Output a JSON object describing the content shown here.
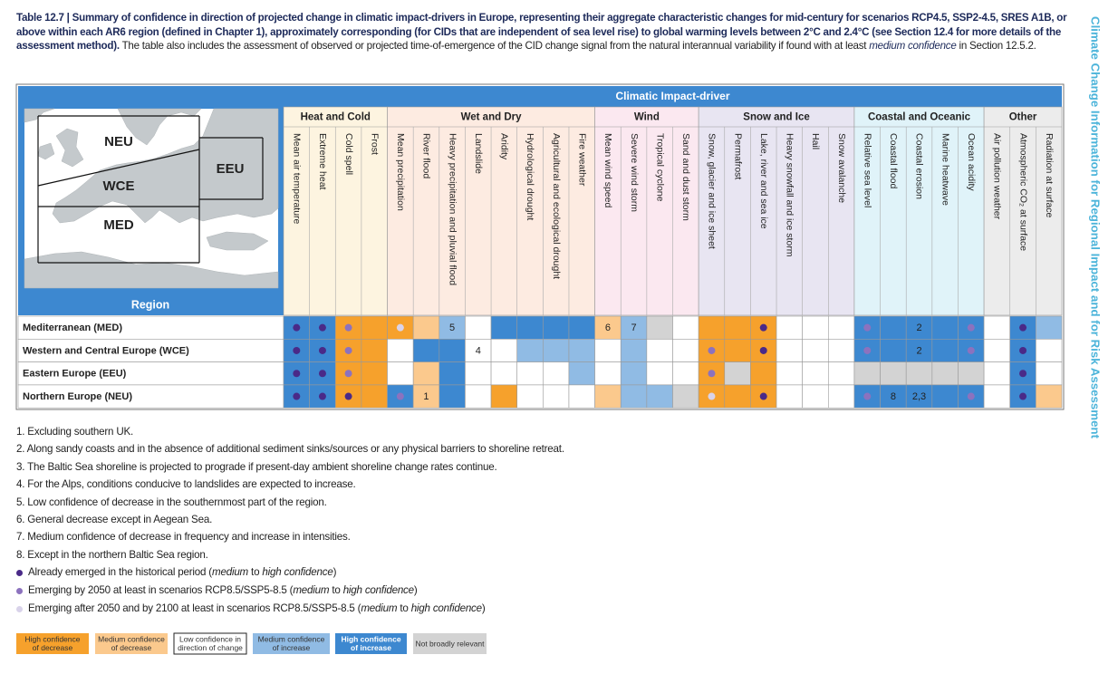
{
  "caption": [
    {
      "text": "Table 12.7 | Summary of confidence in direction of projected change in climatic impact-drivers in Europe, representing their aggregate characteristic changes for mid-century for scenarios RCP4.5, SSP2-4.5, SRES A1B, or above within each AR6 region (defined in Chapter 1), approximately corresponding (for CIDs that are independent of sea level rise) to global warming levels between 2°C and 2.4°C (see Section 12.4 for more details of the assessment method).",
      "bold": true
    },
    " The table also includes the assessment of observed or projected time-of-emergence of the CID change signal from the natural interannual variability if found with at least ",
    {
      "text": "medium confidence",
      "italic": true
    },
    " in Section 12.5.2."
  ],
  "side_title": "Climate Change Information for Regional Impact and for Risk Assessment",
  "map": {
    "labels": [
      "NEU",
      "WCE",
      "EEU",
      "MED"
    ]
  },
  "header": {
    "title": "Climatic Impact-driver",
    "region": "Region",
    "groups": [
      {
        "name": "Heat and Cold",
        "color": "#fdf4e0",
        "columns": [
          "Mean air temperature",
          "Extreme heat",
          "Cold spell",
          "Frost"
        ]
      },
      {
        "name": "Wet and Dry",
        "color": "#fdebe1",
        "columns": [
          "Mean precipitation",
          "River flood",
          "Heavy precipitation and pluvial flood",
          "Landslide",
          "Aridity",
          "Hydrological drought",
          "Agricultural and ecological drought",
          "Fire weather"
        ]
      },
      {
        "name": "Wind",
        "color": "#fbe8f0",
        "columns": [
          "Mean wind speed",
          "Severe wind storm",
          "Tropical cyclone",
          "Sand and dust storm"
        ]
      },
      {
        "name": "Snow and Ice",
        "color": "#e8e5f2",
        "columns": [
          "Snow, glacier and ice sheet",
          "Permafrost",
          "Lake, river and sea ice",
          "Heavy snowfall and ice storm",
          "Hail",
          "Snow avalanche"
        ]
      },
      {
        "name": "Coastal and Oceanic",
        "color": "#e0f3f9",
        "columns": [
          "Relative sea level",
          "Coastal flood",
          "Coastal erosion",
          "Marine heatwave",
          "Ocean acidity"
        ]
      },
      {
        "name": "Other",
        "color": "#ececec",
        "columns": [
          "Air pollution weather",
          "Atmospheric CO₂ at surface",
          "Radiation at surface"
        ]
      }
    ]
  },
  "rows": [
    {
      "region": "Mediterranean (MED)",
      "cells": [
        {
          "fill": "HI",
          "dot": "e1"
        },
        {
          "fill": "HI",
          "dot": "e1"
        },
        {
          "fill": "HD",
          "dot": "e2"
        },
        {
          "fill": "HD"
        },
        {
          "fill": "HD",
          "dot": "e3"
        },
        {
          "fill": "MD"
        },
        {
          "fill": "MI",
          "note": "5"
        },
        {
          "fill": "LC"
        },
        {
          "fill": "HI"
        },
        {
          "fill": "HI"
        },
        {
          "fill": "HI"
        },
        {
          "fill": "HI"
        },
        {
          "fill": "MD",
          "note": "6"
        },
        {
          "fill": "MI",
          "note": "7"
        },
        {
          "fill": "NR"
        },
        {
          "fill": "LC"
        },
        {
          "fill": "HD"
        },
        {
          "fill": "HD"
        },
        {
          "fill": "HD",
          "dot": "e1"
        },
        {
          "fill": "LC"
        },
        {
          "fill": "LC"
        },
        {
          "fill": "LC"
        },
        {
          "fill": "HI",
          "dot": "e2"
        },
        {
          "fill": "HI"
        },
        {
          "fill": "HI",
          "note": "2"
        },
        {
          "fill": "HI"
        },
        {
          "fill": "HI",
          "dot": "e2"
        },
        {
          "fill": "LC"
        },
        {
          "fill": "HI",
          "dot": "e1"
        },
        {
          "fill": "MI"
        }
      ]
    },
    {
      "region": "Western and Central Europe (WCE)",
      "cells": [
        {
          "fill": "HI",
          "dot": "e1"
        },
        {
          "fill": "HI",
          "dot": "e1"
        },
        {
          "fill": "HD",
          "dot": "e2"
        },
        {
          "fill": "HD"
        },
        {
          "fill": "LC"
        },
        {
          "fill": "HI"
        },
        {
          "fill": "HI"
        },
        {
          "fill": "LC",
          "note": "4"
        },
        {
          "fill": "LC"
        },
        {
          "fill": "MI"
        },
        {
          "fill": "MI"
        },
        {
          "fill": "MI"
        },
        {
          "fill": "LC"
        },
        {
          "fill": "MI"
        },
        {
          "fill": "LC"
        },
        {
          "fill": "LC"
        },
        {
          "fill": "HD",
          "dot": "e2"
        },
        {
          "fill": "HD"
        },
        {
          "fill": "HD",
          "dot": "e1"
        },
        {
          "fill": "LC"
        },
        {
          "fill": "LC"
        },
        {
          "fill": "LC"
        },
        {
          "fill": "HI",
          "dot": "e2"
        },
        {
          "fill": "HI"
        },
        {
          "fill": "HI",
          "note": "2"
        },
        {
          "fill": "HI"
        },
        {
          "fill": "HI",
          "dot": "e2"
        },
        {
          "fill": "LC"
        },
        {
          "fill": "HI",
          "dot": "e1"
        },
        {
          "fill": "LC"
        }
      ]
    },
    {
      "region": "Eastern Europe (EEU)",
      "cells": [
        {
          "fill": "HI",
          "dot": "e1"
        },
        {
          "fill": "HI",
          "dot": "e1"
        },
        {
          "fill": "HD",
          "dot": "e2"
        },
        {
          "fill": "HD"
        },
        {
          "fill": "LC"
        },
        {
          "fill": "MD"
        },
        {
          "fill": "HI"
        },
        {
          "fill": "LC"
        },
        {
          "fill": "LC"
        },
        {
          "fill": "LC"
        },
        {
          "fill": "LC"
        },
        {
          "fill": "MI"
        },
        {
          "fill": "LC"
        },
        {
          "fill": "MI"
        },
        {
          "fill": "LC"
        },
        {
          "fill": "LC"
        },
        {
          "fill": "HD",
          "dot": "e2"
        },
        {
          "fill": "NR"
        },
        {
          "fill": "HD"
        },
        {
          "fill": "LC"
        },
        {
          "fill": "LC"
        },
        {
          "fill": "LC"
        },
        {
          "fill": "NR"
        },
        {
          "fill": "NR"
        },
        {
          "fill": "NR"
        },
        {
          "fill": "NR"
        },
        {
          "fill": "NR"
        },
        {
          "fill": "LC"
        },
        {
          "fill": "HI",
          "dot": "e1"
        },
        {
          "fill": "LC"
        }
      ]
    },
    {
      "region": "Northern Europe (NEU)",
      "cells": [
        {
          "fill": "HI",
          "dot": "e1"
        },
        {
          "fill": "HI",
          "dot": "e1"
        },
        {
          "fill": "HD",
          "dot": "e1"
        },
        {
          "fill": "HD"
        },
        {
          "fill": "HI",
          "dot": "e2"
        },
        {
          "fill": "MD",
          "note": "1"
        },
        {
          "fill": "HI"
        },
        {
          "fill": "LC"
        },
        {
          "fill": "HD"
        },
        {
          "fill": "LC"
        },
        {
          "fill": "LC"
        },
        {
          "fill": "LC"
        },
        {
          "fill": "MD"
        },
        {
          "fill": "MI"
        },
        {
          "fill": "MI"
        },
        {
          "fill": "NR"
        },
        {
          "fill": "HD",
          "dot": "e3"
        },
        {
          "fill": "HD"
        },
        {
          "fill": "HD",
          "dot": "e1"
        },
        {
          "fill": "LC"
        },
        {
          "fill": "LC"
        },
        {
          "fill": "LC"
        },
        {
          "fill": "HI",
          "dot": "e2"
        },
        {
          "fill": "HI",
          "note": "8"
        },
        {
          "fill": "HI",
          "note": "2,3"
        },
        {
          "fill": "HI"
        },
        {
          "fill": "HI",
          "dot": "e2"
        },
        {
          "fill": "LC"
        },
        {
          "fill": "HI",
          "dot": "e1"
        },
        {
          "fill": "MD"
        }
      ]
    }
  ],
  "footnotes": [
    "1. Excluding southern UK.",
    "2. Along sandy coasts and in the absence of additional sediment sinks/sources or any physical barriers to shoreline retreat.",
    "3. The Baltic Sea shoreline is projected to prograde if present-day ambient shoreline change rates continue.",
    "4. For the Alps, conditions conducive to landslides are expected to increase.",
    "5. Low confidence of decrease in the southernmost part of the region.",
    "6. General decrease except in Aegean Sea.",
    "7. Medium confidence of decrease in frequency and increase in intensities.",
    "8. Except in the northern Baltic Sea region."
  ],
  "emergence": [
    {
      "dot": "e1",
      "text": [
        "Already emerged in the historical period (",
        {
          "text": "medium",
          "italic": true
        },
        " to ",
        {
          "text": "high confidence",
          "italic": true
        },
        ")"
      ]
    },
    {
      "dot": "e2",
      "text": [
        "Emerging by 2050 at least in scenarios RCP8.5/SSP5-8.5 (",
        {
          "text": "medium",
          "italic": true
        },
        " to ",
        {
          "text": "high confidence",
          "italic": true
        },
        ")"
      ]
    },
    {
      "dot": "e3",
      "text": [
        "Emerging after 2050 and by 2100 at least in scenarios RCP8.5/SSP5-8.5 (",
        {
          "text": "medium",
          "italic": true
        },
        " to ",
        {
          "text": "high confidence",
          "italic": true
        },
        ")"
      ]
    }
  ],
  "legend": [
    {
      "fill": "HD",
      "lines": [
        "High confidence",
        "of decrease"
      ]
    },
    {
      "fill": "MD",
      "lines": [
        "Medium confidence",
        "of decrease"
      ]
    },
    {
      "fill": "LC",
      "lines": [
        "Low confidence in",
        "direction of change"
      ]
    },
    {
      "fill": "MI",
      "lines": [
        "Medium confidence",
        "of increase"
      ]
    },
    {
      "fill": "HI",
      "lines": [
        "High confidence",
        "of increase"
      ]
    },
    {
      "fill": "NR",
      "lines": [
        "Not broadly relevant"
      ]
    }
  ],
  "colors": {
    "HD": "#f6a12c",
    "MD": "#fbc98d",
    "LC": "#ffffff",
    "MI": "#90bbe4",
    "HI": "#3d88d0",
    "NR": "#d3d3d3"
  },
  "dot_colors": {
    "e1": "#4a2a88",
    "e2": "#8c72be",
    "e3": "#d9d3ea"
  }
}
